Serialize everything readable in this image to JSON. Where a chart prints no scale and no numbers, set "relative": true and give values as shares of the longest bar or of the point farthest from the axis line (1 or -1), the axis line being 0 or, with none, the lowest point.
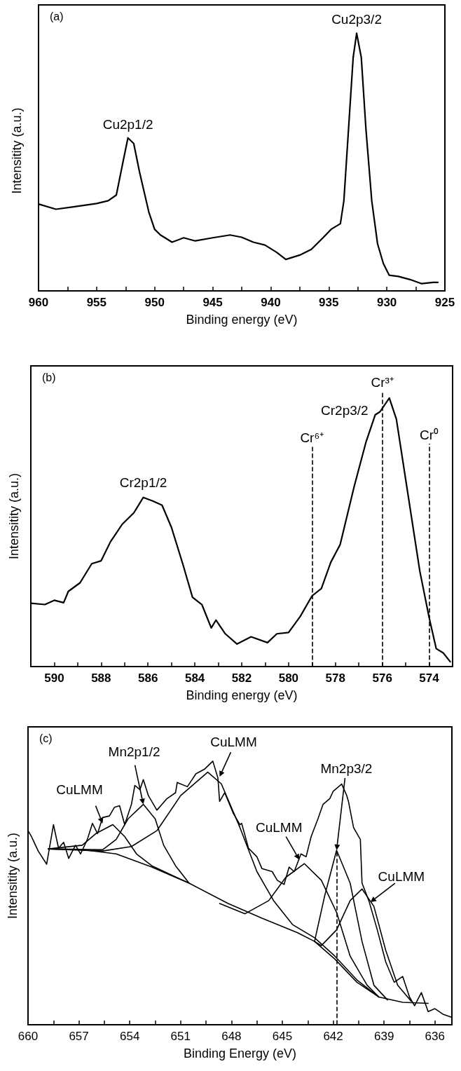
{
  "chart_data": [
    {
      "type": "line",
      "relative": true,
      "xlabel": "Binding energy (eV)",
      "ylabel": "Intensitity (a.u.)",
      "marker": "none",
      "annotations": [
        "(a)",
        {
          "text": "Cu2p1/2",
          "x": 952.3,
          "y": 0.594
        },
        {
          "text": "Cu2p3/2",
          "x": 932.6,
          "y": 1
        }
      ],
      "xlim": [
        960,
        925
      ],
      "xticks": [
        960,
        {
          "value": 957.5,
          "label": null
        },
        955,
        {
          "value": 952.5,
          "label": null
        },
        950,
        {
          "value": 947.5,
          "label": null
        },
        945,
        {
          "value": 942.5,
          "label": null
        },
        940,
        {
          "value": 937.5,
          "label": null
        },
        935,
        {
          "value": 932.5,
          "label": null
        },
        930,
        {
          "value": 927.5,
          "label": null
        },
        925
      ],
      "series": [
        {
          "color": "#000000",
          "x": [
            960,
            958.5,
            957,
            955,
            954,
            953.3,
            952.7,
            952.3,
            951.8,
            951.3,
            950.5,
            950,
            949.5,
            948.5,
            947.5,
            946.5,
            945,
            943.5,
            942.5,
            941.5,
            940.5,
            939.5,
            938.7,
            937.5,
            936.5,
            935.5,
            934.8,
            934,
            933.7,
            933.3,
            932.9,
            932.6,
            932.2,
            931.8,
            931.3,
            930.8,
            930.3,
            929.8,
            929,
            928,
            927,
            926,
            925.6
          ],
          "values": [
            0.337,
            0.317,
            0.326,
            0.339,
            0.35,
            0.372,
            0.506,
            0.594,
            0.572,
            0.461,
            0.306,
            0.239,
            0.217,
            0.189,
            0.206,
            0.194,
            0.206,
            0.217,
            0.208,
            0.189,
            0.178,
            0.15,
            0.122,
            0.139,
            0.161,
            0.206,
            0.239,
            0.261,
            0.35,
            0.628,
            0.906,
            1,
            0.906,
            0.628,
            0.35,
            0.183,
            0.106,
            0.061,
            0.056,
            0.044,
            0.028,
            0.033,
            0.033
          ]
        }
      ]
    },
    {
      "type": "line",
      "relative": true,
      "xlabel": "Binding energy (eV)",
      "ylabel": "Intensitity (a.u.)",
      "marker": "none",
      "annotations": [
        "(b)",
        {
          "text": "Cr2p1/2",
          "x": 586.2,
          "y": 0.63
        },
        {
          "text": "Cr2p3/2",
          "x": 576.3,
          "y": 0.938
        }
      ],
      "xlim": [
        591,
        573
      ],
      "xticks": [
        590,
        {
          "value": 589,
          "label": null
        },
        588,
        {
          "value": 587,
          "label": null
        },
        586,
        {
          "value": 585,
          "label": null
        },
        584,
        {
          "value": 583,
          "label": null
        },
        582,
        {
          "value": 581,
          "label": null
        },
        580,
        {
          "value": 579,
          "label": null
        },
        578,
        {
          "value": 577,
          "label": null
        },
        576,
        {
          "value": 575,
          "label": null
        },
        574
      ],
      "ref_lines": [
        {
          "axis": "x",
          "value": 579,
          "label": "Cr⁶⁺",
          "line_style": "dashed",
          "color": "#000000"
        },
        {
          "axis": "x",
          "value": 576,
          "label": "Cr³⁺",
          "line_style": "dashed",
          "color": "#000000"
        },
        {
          "axis": "x",
          "value": 574,
          "label": "Cr⁰",
          "line_style": "dashed",
          "color": "#000000"
        }
      ],
      "series": [
        {
          "color": "#000000",
          "x": [
            591,
            590.4,
            590,
            589.6,
            589.4,
            588.9,
            588.4,
            588,
            587.6,
            587.1,
            586.6,
            586.2,
            585.8,
            585.4,
            585,
            584.5,
            584.1,
            583.7,
            583.3,
            583.1,
            582.7,
            582.2,
            581.6,
            580.9,
            580.5,
            580,
            579.5,
            579,
            578.6,
            578.2,
            577.8,
            577.2,
            576.7,
            576.3,
            576.1,
            575.7,
            575.4,
            574.9,
            574.4,
            574,
            573.7,
            573.4,
            573.1
          ],
          "values": [
            0.236,
            0.231,
            0.247,
            0.238,
            0.28,
            0.312,
            0.383,
            0.394,
            0.465,
            0.53,
            0.573,
            0.63,
            0.617,
            0.601,
            0.519,
            0.378,
            0.258,
            0.231,
            0.144,
            0.173,
            0.122,
            0.084,
            0.111,
            0.089,
            0.122,
            0.127,
            0.187,
            0.263,
            0.291,
            0.388,
            0.454,
            0.671,
            0.835,
            0.938,
            0.949,
            1,
            0.922,
            0.639,
            0.356,
            0.182,
            0.067,
            0.051,
            0.018
          ]
        }
      ]
    },
    {
      "type": "line",
      "relative": true,
      "xlabel": "Binding Energy (eV)",
      "ylabel": "Intensitity (a.u.)",
      "marker": "none",
      "annotations": [
        "(c)",
        {
          "text": "CuLMM",
          "x": 655.6,
          "y": 0.764
        },
        {
          "text": "Mn2p1/2",
          "x": 653.2,
          "y": 0.836
        },
        {
          "text": "CuLMM",
          "x": 648.7,
          "y": 0.941
        },
        {
          "text": "Mn2p3/2",
          "x": 641.8,
          "y": 0.662
        },
        {
          "text": "CuLMM",
          "x": 644,
          "y": 0.626
        },
        {
          "text": "CuLMM",
          "x": 639.8,
          "y": 0.465
        }
      ],
      "xlim": [
        660,
        635
      ],
      "xticks": [
        660,
        {
          "value": 658.5,
          "label": null
        },
        657,
        {
          "value": 655.5,
          "label": null
        },
        654,
        {
          "value": 652.5,
          "label": null
        },
        651,
        {
          "value": 649.5,
          "label": null
        },
        648,
        {
          "value": 646.5,
          "label": null
        },
        645,
        {
          "value": 643.5,
          "label": null
        },
        642,
        {
          "value": 640.5,
          "label": null
        },
        639,
        {
          "value": 637.5,
          "label": null
        },
        636
      ],
      "ref_lines": [
        {
          "axis": "x",
          "value": 641.8,
          "line_style": "dashed",
          "color": "#000000"
        }
      ],
      "series": [
        {
          "color": "#000000",
          "x": [
            660,
            659.8,
            659.4,
            658.9,
            658.5,
            658.2,
            657.9,
            657.6,
            657.2,
            656.9,
            656.5,
            656.2,
            655.9,
            655.6,
            655.2,
            654.9,
            654.6,
            654.3,
            653.9,
            653.7,
            653.4,
            653.2,
            652.9,
            652.4,
            651.8,
            651.3,
            651.2,
            650.6,
            650.1,
            649.6,
            649.1,
            648.8,
            648.7,
            648.4,
            647.9,
            647.5,
            647.4,
            647,
            646.5,
            646.2,
            645.6,
            645.3,
            644.9,
            644.6,
            644.3,
            643.9,
            643.6,
            643.3,
            642.9,
            642.6,
            642.2,
            642,
            641.5,
            641.2,
            641.1,
            640.8,
            640.4,
            640.3,
            639.9,
            639.4,
            638.9,
            638.4,
            637.9,
            637.5,
            637.2,
            636.8,
            636.4,
            636,
            635.5,
            635
          ],
          "values": [
            0.736,
            0.714,
            0.659,
            0.609,
            0.759,
            0.67,
            0.692,
            0.631,
            0.681,
            0.648,
            0.703,
            0.764,
            0.725,
            0.786,
            0.792,
            0.825,
            0.831,
            0.759,
            0.836,
            0.908,
            0.892,
            0.93,
            0.869,
            0.814,
            0.858,
            0.88,
            0.919,
            0.903,
            0.952,
            0.969,
            1,
            0.936,
            0.847,
            0.88,
            0.803,
            0.759,
            0.764,
            0.67,
            0.637,
            0.592,
            0.581,
            0.548,
            0.532,
            0.598,
            0.581,
            0.648,
            0.637,
            0.714,
            0.781,
            0.836,
            0.858,
            0.886,
            0.913,
            0.869,
            0.847,
            0.748,
            0.703,
            0.537,
            0.471,
            0.36,
            0.238,
            0.161,
            0.183,
            0.105,
            0.072,
            0.122,
            0.05,
            0.061,
            0.039,
            0.028
          ]
        },
        {
          "color": "#000000",
          "x": [
            658.8,
            656.8,
            654.8,
            652.7,
            650.5,
            648.2,
            646.2,
            644.1,
            643.1,
            641.9,
            640.6,
            639.3,
            637.9,
            636.4
          ],
          "values": [
            0.667,
            0.664,
            0.648,
            0.598,
            0.537,
            0.46,
            0.404,
            0.349,
            0.316,
            0.249,
            0.161,
            0.105,
            0.085,
            0.081
          ]
        },
        {
          "color": "#000000",
          "x": [
            658.8,
            656.8,
            656,
            655,
            654.3,
            653.6,
            652.7,
            650.5
          ],
          "values": [
            0.667,
            0.681,
            0.725,
            0.759,
            0.714,
            0.648,
            0.603,
            0.537
          ]
        },
        {
          "color": "#000000",
          "x": [
            658.8,
            655.6,
            654.8,
            654.1,
            653.2,
            652.5,
            652,
            651.3,
            650.5
          ],
          "values": [
            0.667,
            0.664,
            0.703,
            0.781,
            0.836,
            0.781,
            0.681,
            0.603,
            0.537
          ]
        },
        {
          "color": "#000000",
          "x": [
            658.8,
            655.6,
            653.9,
            652.4,
            651,
            649.4,
            648.6,
            647.5,
            646.5,
            645.5,
            644.4,
            643.1,
            641.9,
            640.6,
            639.3
          ],
          "values": [
            0.667,
            0.659,
            0.676,
            0.736,
            0.869,
            0.958,
            0.914,
            0.748,
            0.581,
            0.469,
            0.38,
            0.33,
            0.26,
            0.17,
            0.105
          ]
        },
        {
          "color": "#000000",
          "x": [
            648.7,
            647.2,
            645.8,
            644.8,
            643.7,
            642.7,
            641.8,
            641,
            640,
            639.3
          ],
          "values": [
            0.46,
            0.421,
            0.471,
            0.559,
            0.611,
            0.548,
            0.426,
            0.26,
            0.15,
            0.105
          ]
        },
        {
          "color": "#000000",
          "x": [
            643.1,
            642.5,
            641.8,
            641,
            640.3,
            639.6,
            638.8
          ],
          "values": [
            0.316,
            0.49,
            0.662,
            0.537,
            0.316,
            0.15,
            0.094
          ]
        },
        {
          "color": "#000000",
          "x": [
            643.1,
            642.7,
            641.8,
            641,
            640.3,
            639.6,
            638.9,
            638.2,
            637.4
          ],
          "values": [
            0.316,
            0.3,
            0.36,
            0.471,
            0.515,
            0.449,
            0.282,
            0.15,
            0.089
          ]
        }
      ]
    }
  ]
}
